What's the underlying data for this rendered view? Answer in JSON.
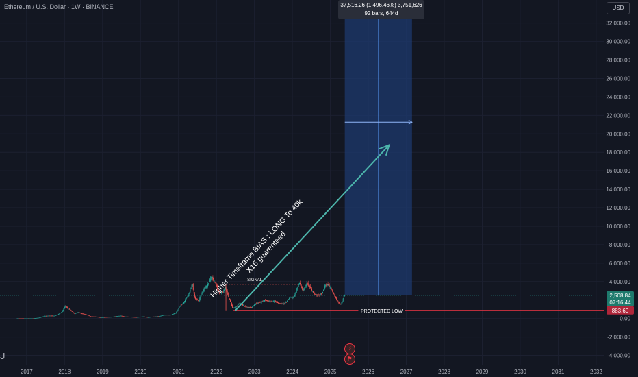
{
  "header": {
    "symbol_title": "Ethereum / U.S. Dollar · 1W · BINANCE",
    "currency": "USD"
  },
  "measure_tooltip": {
    "line1": "37,516.26 (1,496.46%) 3,751,626",
    "line2": "92 bars, 644d"
  },
  "annotations": {
    "arrow_line1": "Higher Timeframe BIAS : LONG To 40k",
    "arrow_line2": "X15 guarenteed",
    "signal_label": "SIGNAL",
    "protected_low_label": "PROTECTED LOW"
  },
  "price_labels": {
    "current_price": "2,508.84",
    "countdown": "07:16:44",
    "protected_low_price": "883.60"
  },
  "icons": {
    "event_icon_1": "lightning-icon",
    "event_icon_2": "flag-icon"
  },
  "colors": {
    "background": "#131722",
    "up": "#26a69a",
    "down": "#ef5350",
    "arrow": "#4db6ac",
    "protected_low_line": "#f23645",
    "measure_box": "#1e3a6e"
  },
  "chart_data": {
    "type": "candlestick",
    "title": "Ethereum / U.S. Dollar · 1W · BINANCE",
    "y_tick_labels": [
      "32,000.00",
      "30,000.00",
      "28,000.00",
      "26,000.00",
      "24,000.00",
      "22,000.00",
      "20,000.00",
      "18,000.00",
      "16,000.00",
      "14,000.00",
      "12,000.00",
      "10,000.00",
      "8,000.00",
      "6,000.00",
      "4,000.00",
      "0.00",
      "-2,000.00",
      "-4,000.00"
    ],
    "y_ticks": [
      32000,
      30000,
      28000,
      26000,
      24000,
      22000,
      20000,
      18000,
      16000,
      14000,
      12000,
      10000,
      8000,
      6000,
      4000,
      0,
      -2000,
      -4000
    ],
    "ylim": [
      -5000,
      34500
    ],
    "x_tick_labels": [
      "2017",
      "2018",
      "2019",
      "2020",
      "2021",
      "2022",
      "2023",
      "2024",
      "2025",
      "2026",
      "2027",
      "2028",
      "2029",
      "2030",
      "2031",
      "2032"
    ],
    "x_ticks": [
      2017,
      2018,
      2019,
      2020,
      2021,
      2022,
      2023,
      2024,
      2025,
      2026,
      2027,
      2028,
      2029,
      2030,
      2031,
      2032
    ],
    "xlim": [
      2016.3,
      2032.2
    ],
    "price_path": [
      [
        2016.75,
        10
      ],
      [
        2017.0,
        9
      ],
      [
        2017.2,
        12
      ],
      [
        2017.35,
        90
      ],
      [
        2017.5,
        280
      ],
      [
        2017.6,
        300
      ],
      [
        2017.75,
        290
      ],
      [
        2017.85,
        450
      ],
      [
        2017.95,
        720
      ],
      [
        2018.04,
        1380
      ],
      [
        2018.1,
        1100
      ],
      [
        2018.18,
        900
      ],
      [
        2018.28,
        500
      ],
      [
        2018.37,
        700
      ],
      [
        2018.45,
        550
      ],
      [
        2018.6,
        420
      ],
      [
        2018.7,
        220
      ],
      [
        2018.85,
        200
      ],
      [
        2018.95,
        120
      ],
      [
        2019.05,
        140
      ],
      [
        2019.25,
        170
      ],
      [
        2019.45,
        280
      ],
      [
        2019.5,
        300
      ],
      [
        2019.6,
        210
      ],
      [
        2019.75,
        180
      ],
      [
        2019.9,
        140
      ],
      [
        2020.1,
        220
      ],
      [
        2020.2,
        130
      ],
      [
        2020.35,
        200
      ],
      [
        2020.5,
        240
      ],
      [
        2020.65,
        390
      ],
      [
        2020.8,
        380
      ],
      [
        2020.95,
        600
      ],
      [
        2021.05,
        1300
      ],
      [
        2021.15,
        1700
      ],
      [
        2021.3,
        2700
      ],
      [
        2021.38,
        3800
      ],
      [
        2021.45,
        2200
      ],
      [
        2021.55,
        1900
      ],
      [
        2021.62,
        2600
      ],
      [
        2021.7,
        3300
      ],
      [
        2021.8,
        3700
      ],
      [
        2021.88,
        4600
      ],
      [
        2021.95,
        4100
      ],
      [
        2022.0,
        3700
      ],
      [
        2022.1,
        2700
      ],
      [
        2022.2,
        2900
      ],
      [
        2022.25,
        3400
      ],
      [
        2022.35,
        2200
      ],
      [
        2022.45,
        1100
      ],
      [
        2022.55,
        1300
      ],
      [
        2022.62,
        1700
      ],
      [
        2022.75,
        1350
      ],
      [
        2022.85,
        1200
      ],
      [
        2022.95,
        1200
      ],
      [
        2023.05,
        1600
      ],
      [
        2023.2,
        1800
      ],
      [
        2023.3,
        2000
      ],
      [
        2023.45,
        1800
      ],
      [
        2023.55,
        1900
      ],
      [
        2023.65,
        1650
      ],
      [
        2023.8,
        1600
      ],
      [
        2023.88,
        1900
      ],
      [
        2023.95,
        2300
      ],
      [
        2024.05,
        2300
      ],
      [
        2024.12,
        3000
      ],
      [
        2024.2,
        3900
      ],
      [
        2024.3,
        3000
      ],
      [
        2024.4,
        3800
      ],
      [
        2024.5,
        3300
      ],
      [
        2024.6,
        2600
      ],
      [
        2024.7,
        2500
      ],
      [
        2024.8,
        2700
      ],
      [
        2024.88,
        3600
      ],
      [
        2024.95,
        3700
      ],
      [
        2025.05,
        3200
      ],
      [
        2025.1,
        2700
      ],
      [
        2025.2,
        1900
      ],
      [
        2025.28,
        1500
      ],
      [
        2025.33,
        1800
      ],
      [
        2025.38,
        2508.84
      ]
    ],
    "annotations": [
      {
        "type": "horizontal_line",
        "label": "PROTECTED LOW",
        "y": 883.6
      },
      {
        "type": "range",
        "label": "SIGNAL",
        "y": 3700,
        "x": [
          2022.25,
          2024.2
        ]
      },
      {
        "type": "arrow",
        "label": "Higher Timeframe BIAS : LONG To 40k",
        "sublabel": "X15 guarenteed",
        "from": [
          2022.5,
          883.6
        ],
        "to": [
          2026.55,
          18800
        ]
      },
      {
        "type": "measure",
        "text": "37,516.26 (1,496.46%) 3,751,626",
        "sub": "92 bars, 644d",
        "x": [
          2025.38,
          2027.15
        ],
        "y": [
          2508.84,
          40025
        ]
      }
    ],
    "last_price": 2508.84,
    "protected_low": 883.6
  }
}
